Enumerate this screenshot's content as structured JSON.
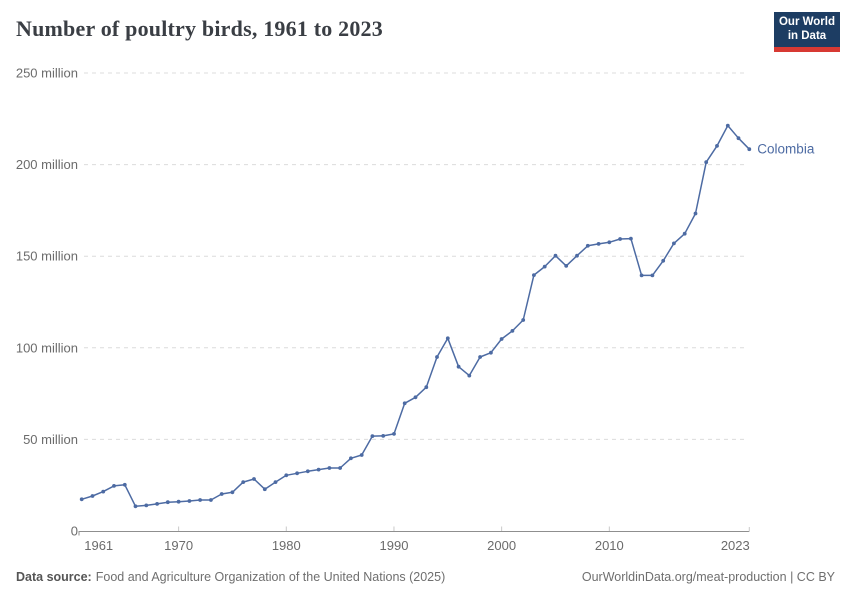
{
  "header": {
    "title": "Number of poultry birds, 1961 to 2023",
    "logo": {
      "line1": "Our World",
      "line2": "in Data"
    }
  },
  "chart_data": {
    "type": "line",
    "title": "Number of poultry birds, 1961 to 2023",
    "unit": "million birds",
    "x": [
      1961,
      1962,
      1963,
      1964,
      1965,
      1966,
      1967,
      1968,
      1969,
      1970,
      1971,
      1972,
      1973,
      1974,
      1975,
      1976,
      1977,
      1978,
      1979,
      1980,
      1981,
      1982,
      1983,
      1984,
      1985,
      1986,
      1987,
      1988,
      1989,
      1990,
      1991,
      1992,
      1993,
      1994,
      1995,
      1996,
      1997,
      1998,
      1999,
      2000,
      2001,
      2002,
      2003,
      2004,
      2005,
      2006,
      2007,
      2008,
      2009,
      2010,
      2011,
      2012,
      2013,
      2014,
      2015,
      2016,
      2017,
      2018,
      2019,
      2020,
      2021,
      2022,
      2023
    ],
    "series": [
      {
        "name": "Colombia",
        "values": [
          17.3,
          19.1,
          21.5,
          24.6,
          25.2,
          13.5,
          14.0,
          14.8,
          15.7,
          16.0,
          16.4,
          16.9,
          16.9,
          20.2,
          21.1,
          26.7,
          28.4,
          22.8,
          26.7,
          30.4,
          31.5,
          32.6,
          33.5,
          34.4,
          34.4,
          39.7,
          41.5,
          51.8,
          51.9,
          53.0,
          69.7,
          73.0,
          78.5,
          95.0,
          105.2,
          89.7,
          84.8,
          95.0,
          97.3,
          104.8,
          109.2,
          115.2,
          139.7,
          144.3,
          150.3,
          144.7,
          150.3,
          155.7,
          156.7,
          157.6,
          159.4,
          159.6,
          139.5,
          139.5,
          147.5,
          157.0,
          162.3,
          173.3,
          201.3,
          210.2,
          221.3,
          214.4,
          208.4
        ]
      }
    ],
    "xticks": [
      1961,
      1970,
      1980,
      1990,
      2000,
      2010,
      2023
    ],
    "yticks": [
      0,
      50,
      100,
      150,
      200,
      250
    ],
    "ytick_labels": [
      "0",
      "50 million",
      "100 million",
      "150 million",
      "200 million",
      "250 million"
    ],
    "xlim": [
      1961,
      2023
    ],
    "ylim": [
      0,
      250
    ],
    "grid": "horizontal dashed",
    "legend_position": "line-end-label",
    "line_color": "#4d6ba3",
    "marker": "dot",
    "end_label": "Colombia"
  },
  "colors": {
    "accent_blue": "#4d6ba3",
    "logo_navy": "#1d3d63",
    "logo_red": "#d73933",
    "axis_text": "#6b6b6b",
    "gridline": "#dcdcdc",
    "axis_line": "#8f8f8f"
  },
  "footer": {
    "data_source_label": "Data source:",
    "data_source_value": "Food and Agriculture Organization of the United Nations (2025)",
    "link": "OurWorldinData.org/meat-production",
    "separator": " | ",
    "license": "CC BY"
  }
}
